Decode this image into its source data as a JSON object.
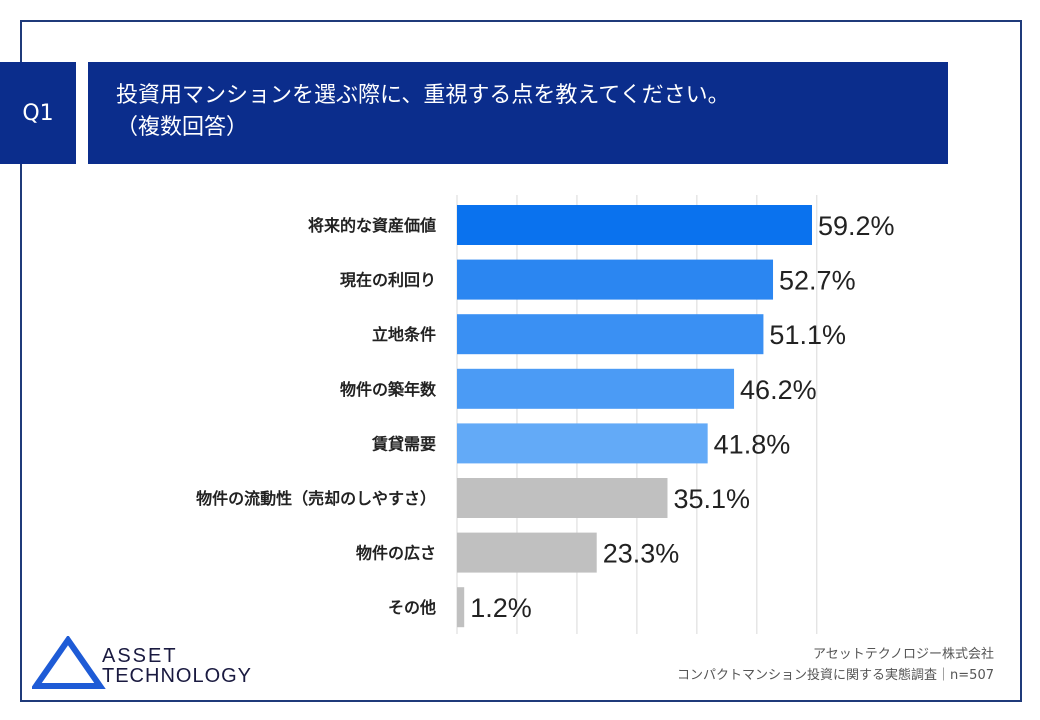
{
  "header": {
    "badge": "Q1",
    "question_line1": "投資用マンションを選ぶ際に、重視する点を教えてください。",
    "question_line2": "（複数回答）"
  },
  "chart_data": {
    "type": "bar",
    "orientation": "horizontal",
    "categories": [
      "将来的な資産価値",
      "現在の利回り",
      "立地条件",
      "物件の築年数",
      "賃貸需要",
      "物件の流動性（売却のしやすさ）",
      "物件の広さ",
      "その他"
    ],
    "values": [
      59.2,
      52.7,
      51.1,
      46.2,
      41.8,
      35.1,
      23.3,
      1.2
    ],
    "value_labels": [
      "59.2%",
      "52.7%",
      "51.1%",
      "46.2%",
      "41.8%",
      "35.1%",
      "23.3%",
      "1.2%"
    ],
    "colors": [
      "#0a72ee",
      "#2b86f1",
      "#3a90f3",
      "#4b9bf5",
      "#63aaf7",
      "#c0c0c0",
      "#c0c0c0",
      "#c0c0c0"
    ],
    "xlim": [
      0,
      60
    ],
    "grid": true,
    "title": "",
    "xlabel": "",
    "ylabel": ""
  },
  "footer": {
    "company": "アセットテクノロジー株式会社",
    "survey": "コンパクトマンション投資に関する実態調査｜n=507"
  },
  "logo": {
    "line1": "ASSET",
    "line2": "TECHNOLOGY"
  },
  "colors": {
    "brand_navy": "#0b2d8c",
    "logo_blue": "#1e5bd6"
  }
}
